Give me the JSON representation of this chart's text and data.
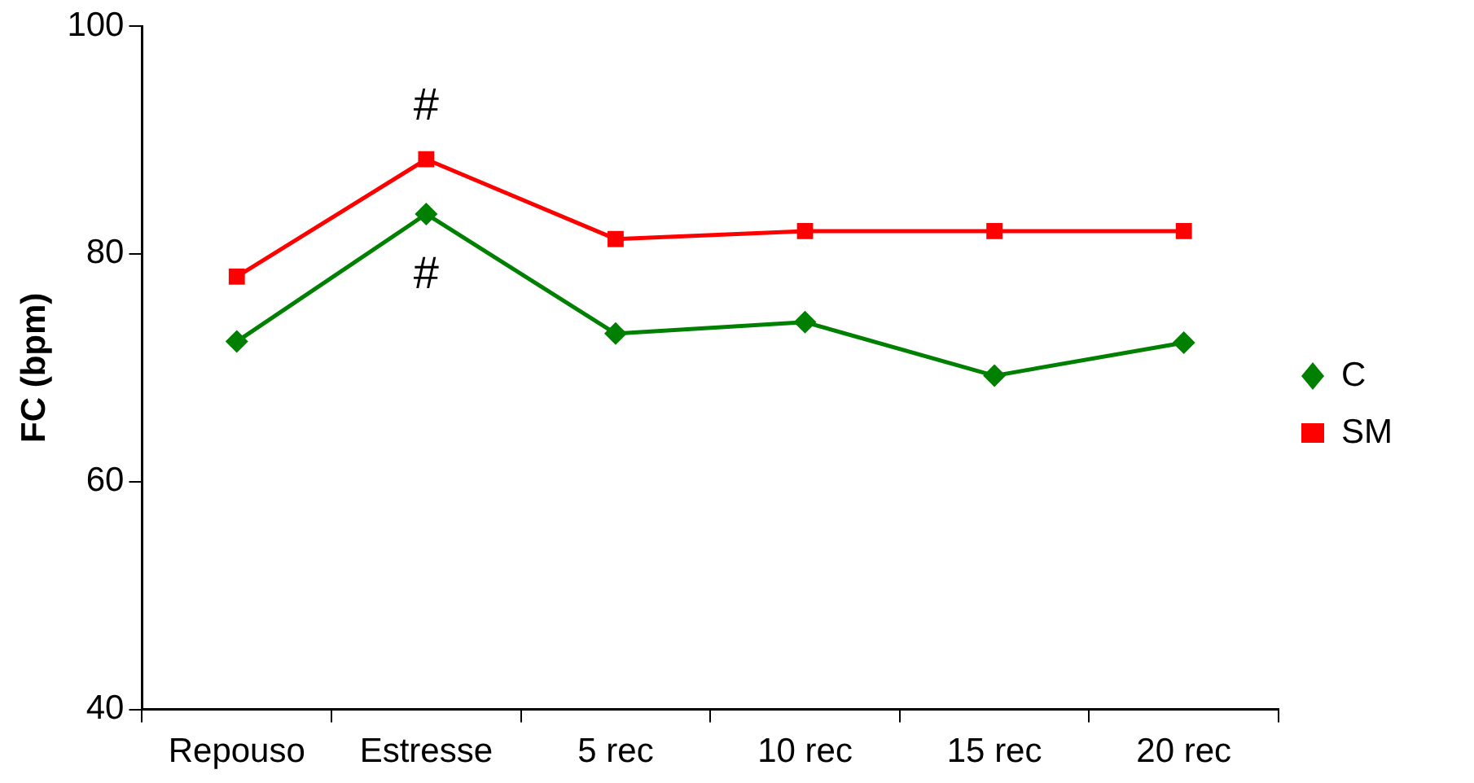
{
  "chart_data": {
    "type": "line",
    "ylabel": "FC (bpm)",
    "categories": [
      "Repouso",
      "Estresse",
      "5 rec",
      "10 rec",
      "15 rec",
      "20 rec"
    ],
    "series": [
      {
        "name": "C",
        "color": "#008000",
        "marker": "diamond",
        "values": [
          72.3,
          83.5,
          73,
          74,
          69.3,
          72.2
        ]
      },
      {
        "name": "SM",
        "color": "#ff0000",
        "marker": "square",
        "values": [
          78,
          88.3,
          81.3,
          82,
          82,
          82
        ]
      }
    ],
    "ylim": [
      40,
      100
    ],
    "yticks": [
      40,
      60,
      80,
      100
    ],
    "grid": false,
    "legend": "right",
    "annotations": [
      "#",
      "#"
    ]
  }
}
